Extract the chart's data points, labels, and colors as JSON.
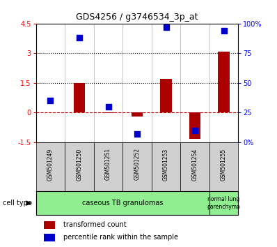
{
  "title": "GDS4256 / g3746534_3p_at",
  "samples": [
    "GSM501249",
    "GSM501250",
    "GSM501251",
    "GSM501252",
    "GSM501253",
    "GSM501254",
    "GSM501255"
  ],
  "transformed_count": [
    0.0,
    1.47,
    -0.05,
    -0.22,
    1.68,
    -1.35,
    3.08
  ],
  "percentile_rank_pct": [
    35,
    88,
    30,
    7,
    97,
    10,
    94
  ],
  "ylim_left": [
    -1.5,
    4.5
  ],
  "ylim_right": [
    0,
    100
  ],
  "yticks_left": [
    -1.5,
    0.0,
    1.5,
    3.0,
    4.5
  ],
  "yticks_right": [
    0,
    25,
    50,
    75,
    100
  ],
  "ytick_labels_left": [
    "-1.5",
    "0",
    "1.5",
    "3",
    "4.5"
  ],
  "ytick_labels_right": [
    "0%",
    "25",
    "50",
    "75",
    "100%"
  ],
  "hlines": [
    1.5,
    3.0
  ],
  "cell_type_groups": [
    {
      "start": 0,
      "end": 5,
      "label": "caseous TB granulomas",
      "color": "#b0f5b0"
    },
    {
      "start": 6,
      "end": 6,
      "label": "normal lung\nparenchyma",
      "color": "#b0f5b0"
    }
  ],
  "bar_color": "#aa0000",
  "dot_color": "#0000cc",
  "zero_line_color": "#cc0000",
  "dot_size": 40,
  "legend_bar_label": "transformed count",
  "legend_dot_label": "percentile rank within the sample",
  "cell_type_label": "cell type"
}
